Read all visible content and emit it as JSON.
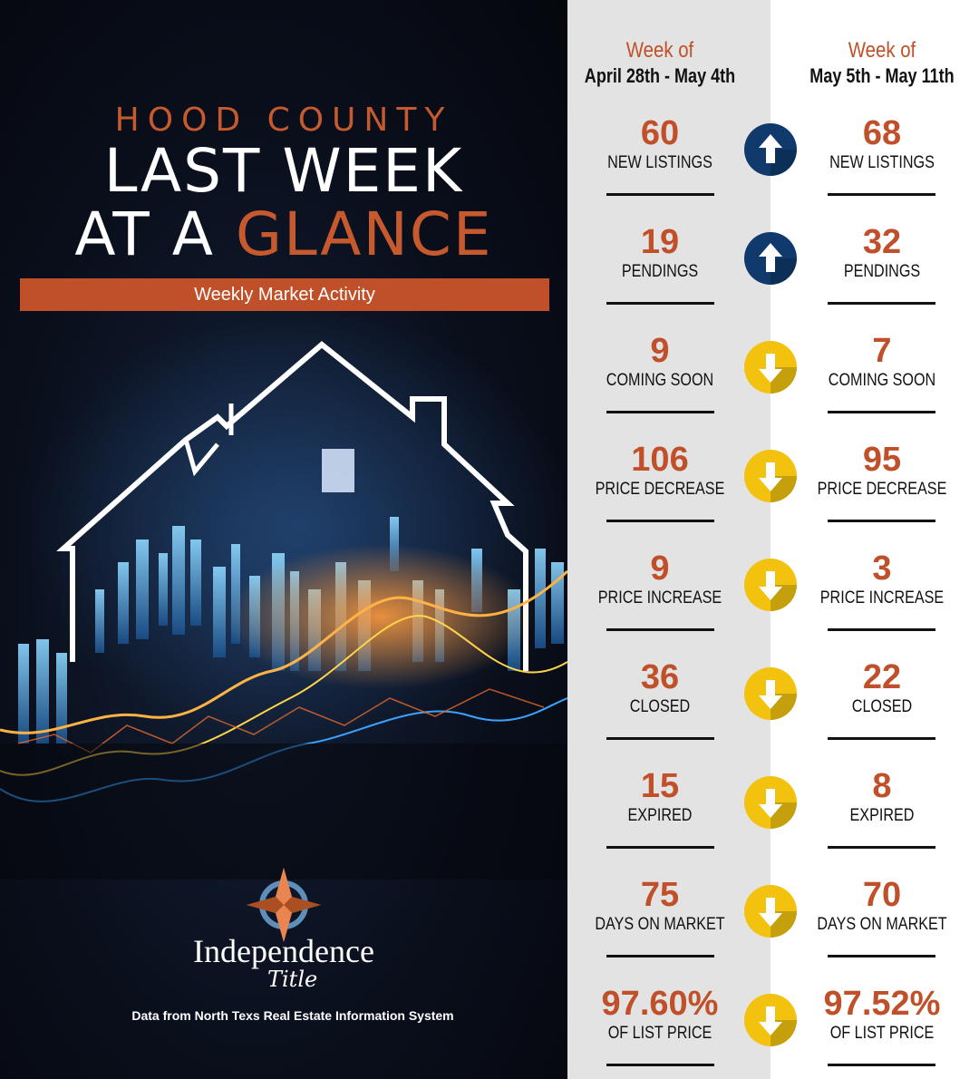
{
  "headline": {
    "county": "HOOD COUNTY",
    "line1": "LAST WEEK",
    "line2_prefix": "AT A ",
    "line2_accent": "GLANCE"
  },
  "banner": "Weekly Market Activity",
  "brand": {
    "name": "Independence",
    "sub": "Title",
    "data_source": "Data from North Texs Real Estate Information System"
  },
  "weeks": {
    "previous": {
      "label": "Week of",
      "range": "April 28th - May 4th"
    },
    "current": {
      "label": "Week of",
      "range": "May 5th - May 11th"
    }
  },
  "colors": {
    "accent": "#c0502a",
    "up": "#0f3a6b",
    "down": "#f2c20f",
    "left_bg": "#0a0f1c",
    "prev_col_bg": "#e3e3e4"
  },
  "metrics": [
    {
      "label": "NEW LISTINGS",
      "previous": "60",
      "current": "68",
      "trend": "up"
    },
    {
      "label": "PENDINGS",
      "previous": "19",
      "current": "32",
      "trend": "up"
    },
    {
      "label": "COMING SOON",
      "previous": "9",
      "current": "7",
      "trend": "down"
    },
    {
      "label": "PRICE DECREASE",
      "previous": "106",
      "current": "95",
      "trend": "down"
    },
    {
      "label": "PRICE INCREASE",
      "previous": "9",
      "current": "3",
      "trend": "down"
    },
    {
      "label": "CLOSED",
      "previous": "36",
      "current": "22",
      "trend": "down"
    },
    {
      "label": "EXPIRED",
      "previous": "15",
      "current": "8",
      "trend": "down"
    },
    {
      "label": "DAYS ON MARKET",
      "previous": "75",
      "current": "70",
      "trend": "down"
    },
    {
      "label": "OF LIST PRICE",
      "previous": "97.60%",
      "current": "97.52%",
      "trend": "down"
    }
  ]
}
